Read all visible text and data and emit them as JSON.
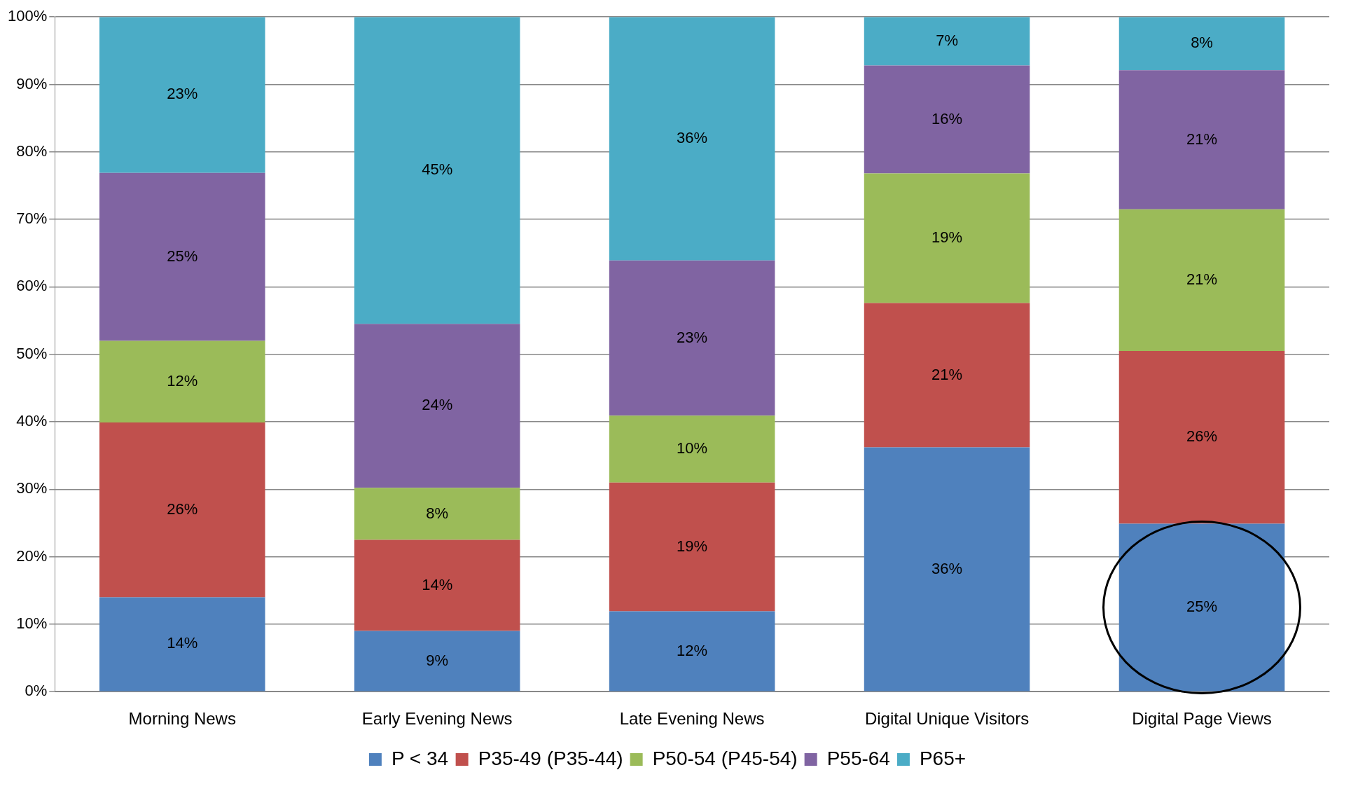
{
  "chart_data": {
    "type": "bar",
    "stacked": true,
    "categories": [
      "Morning News",
      "Early Evening News",
      "Late Evening News",
      "Digital Unique Visitors",
      "Digital Page Views"
    ],
    "series": [
      {
        "name": "P < 34",
        "color": "#4f81bd",
        "values": [
          14.0,
          9.0,
          11.9,
          36.2,
          24.9
        ],
        "value_labels": [
          "14%",
          "9%",
          "12%",
          "36%",
          "25%"
        ]
      },
      {
        "name": "P35-49 (P35-44)",
        "color": "#c0504d",
        "values": [
          25.9,
          13.5,
          19.1,
          21.4,
          25.6
        ],
        "value_labels": [
          "26%",
          "14%",
          "19%",
          "21%",
          "26%"
        ]
      },
      {
        "name": "P50-54 (P45-54)",
        "color": "#9bbb59",
        "values": [
          12.1,
          7.7,
          9.9,
          19.2,
          21.0
        ],
        "value_labels": [
          "12%",
          "8%",
          "10%",
          "19%",
          "21%"
        ]
      },
      {
        "name": "P55-64",
        "color": "#8064a2",
        "values": [
          24.9,
          24.3,
          23.0,
          16.0,
          20.6
        ],
        "value_labels": [
          "25%",
          "24%",
          "23%",
          "16%",
          "21%"
        ]
      },
      {
        "name": "P65+",
        "color": "#4bacc6",
        "values": [
          23.1,
          45.5,
          36.1,
          7.2,
          7.9
        ],
        "value_labels": [
          "23%",
          "45%",
          "36%",
          "7%",
          "8%"
        ]
      }
    ],
    "ylim": [
      0,
      100
    ],
    "yticks": [
      {
        "value": 0,
        "label": "0%"
      },
      {
        "value": 10,
        "label": "10%"
      },
      {
        "value": 20,
        "label": "20%"
      },
      {
        "value": 30,
        "label": "30%"
      },
      {
        "value": 40,
        "label": "40%"
      },
      {
        "value": 50,
        "label": "50%"
      },
      {
        "value": 60,
        "label": "60%"
      },
      {
        "value": 70,
        "label": "70%"
      },
      {
        "value": 80,
        "label": "80%"
      },
      {
        "value": 90,
        "label": "90%"
      },
      {
        "value": 100,
        "label": "100%"
      }
    ],
    "grid": "y",
    "legend": "bottom"
  }
}
